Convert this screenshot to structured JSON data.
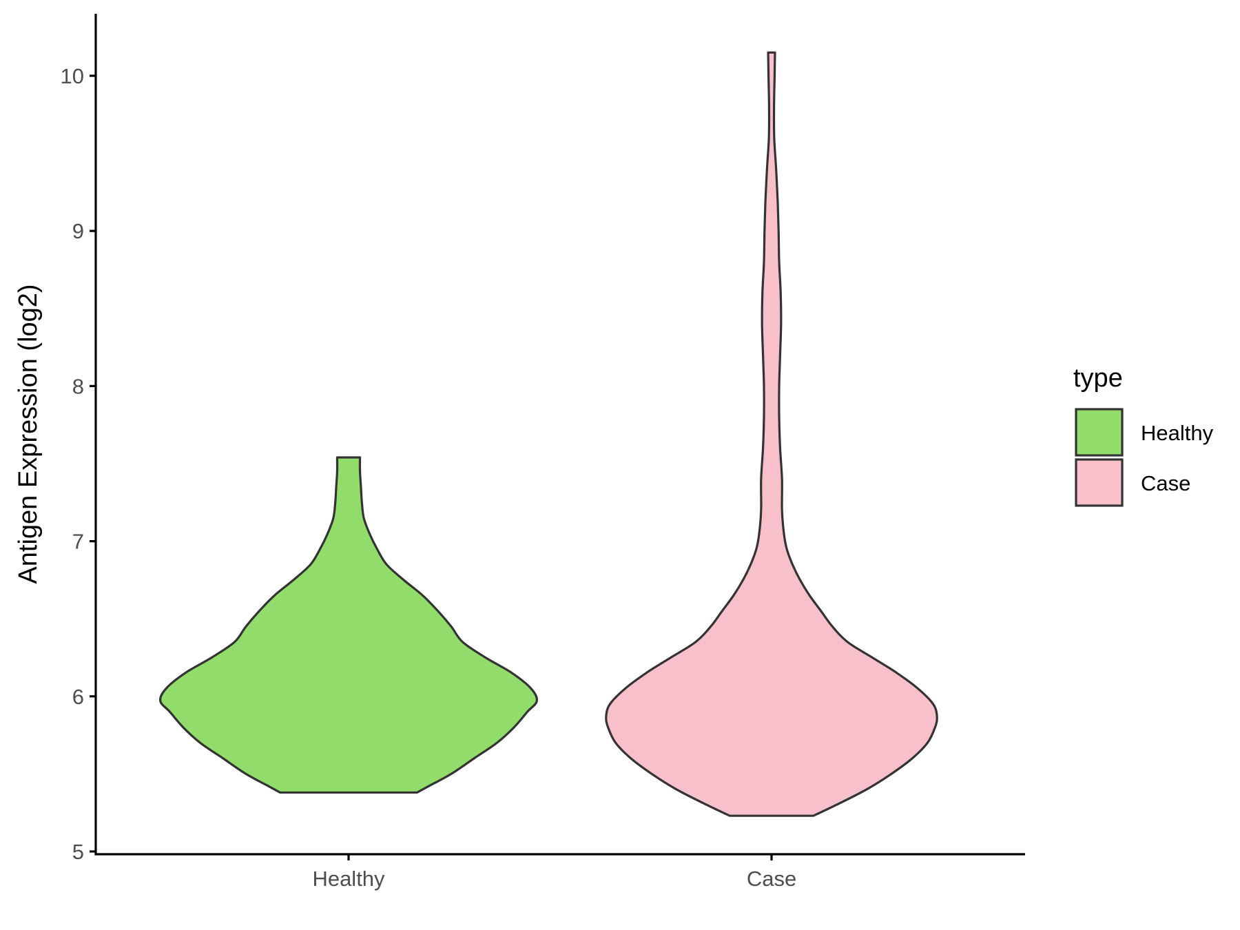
{
  "chart_data": {
    "type": "violin",
    "ylabel": "Antigen Expression (log2)",
    "xlabel": "",
    "ylim": [
      4.98,
      10.4
    ],
    "yticks": [
      5,
      6,
      7,
      8,
      9,
      10
    ],
    "categories": [
      "Healthy",
      "Case"
    ],
    "legend": {
      "title": "type",
      "position": "right",
      "items": [
        {
          "label": "Healthy",
          "color": "#92dc6b"
        },
        {
          "label": "Case",
          "color": "#f7c0cb"
        }
      ]
    },
    "series": [
      {
        "name": "Healthy",
        "color": "#92dc6b",
        "min": 5.38,
        "max": 7.54,
        "density": [
          [
            5.38,
            0.36
          ],
          [
            5.42,
            0.42
          ],
          [
            5.5,
            0.54
          ],
          [
            5.6,
            0.66
          ],
          [
            5.7,
            0.78
          ],
          [
            5.8,
            0.87
          ],
          [
            5.9,
            0.94
          ],
          [
            5.97,
            0.99
          ],
          [
            6.05,
            0.96
          ],
          [
            6.15,
            0.86
          ],
          [
            6.25,
            0.72
          ],
          [
            6.35,
            0.6
          ],
          [
            6.45,
            0.54
          ],
          [
            6.55,
            0.47
          ],
          [
            6.65,
            0.39
          ],
          [
            6.75,
            0.29
          ],
          [
            6.85,
            0.2
          ],
          [
            6.95,
            0.15
          ],
          [
            7.05,
            0.11
          ],
          [
            7.15,
            0.08
          ],
          [
            7.25,
            0.07
          ],
          [
            7.35,
            0.065
          ],
          [
            7.45,
            0.06
          ],
          [
            7.54,
            0.06
          ]
        ]
      },
      {
        "name": "Case",
        "color": "#f7c0cb",
        "min": 5.23,
        "max": 10.15,
        "density": [
          [
            5.23,
            0.22
          ],
          [
            5.3,
            0.34
          ],
          [
            5.4,
            0.5
          ],
          [
            5.5,
            0.63
          ],
          [
            5.6,
            0.74
          ],
          [
            5.7,
            0.82
          ],
          [
            5.8,
            0.86
          ],
          [
            5.87,
            0.87
          ],
          [
            5.95,
            0.85
          ],
          [
            6.05,
            0.77
          ],
          [
            6.15,
            0.66
          ],
          [
            6.25,
            0.53
          ],
          [
            6.35,
            0.4
          ],
          [
            6.45,
            0.32
          ],
          [
            6.55,
            0.26
          ],
          [
            6.65,
            0.2
          ],
          [
            6.75,
            0.15
          ],
          [
            6.85,
            0.11
          ],
          [
            6.95,
            0.08
          ],
          [
            7.05,
            0.065
          ],
          [
            7.2,
            0.055
          ],
          [
            7.4,
            0.055
          ],
          [
            7.6,
            0.045
          ],
          [
            7.8,
            0.04
          ],
          [
            8.0,
            0.04
          ],
          [
            8.2,
            0.045
          ],
          [
            8.4,
            0.05
          ],
          [
            8.6,
            0.048
          ],
          [
            8.8,
            0.04
          ],
          [
            9.0,
            0.037
          ],
          [
            9.2,
            0.032
          ],
          [
            9.4,
            0.024
          ],
          [
            9.6,
            0.014
          ],
          [
            9.8,
            0.013
          ],
          [
            10.0,
            0.016
          ],
          [
            10.15,
            0.018
          ]
        ]
      }
    ]
  }
}
